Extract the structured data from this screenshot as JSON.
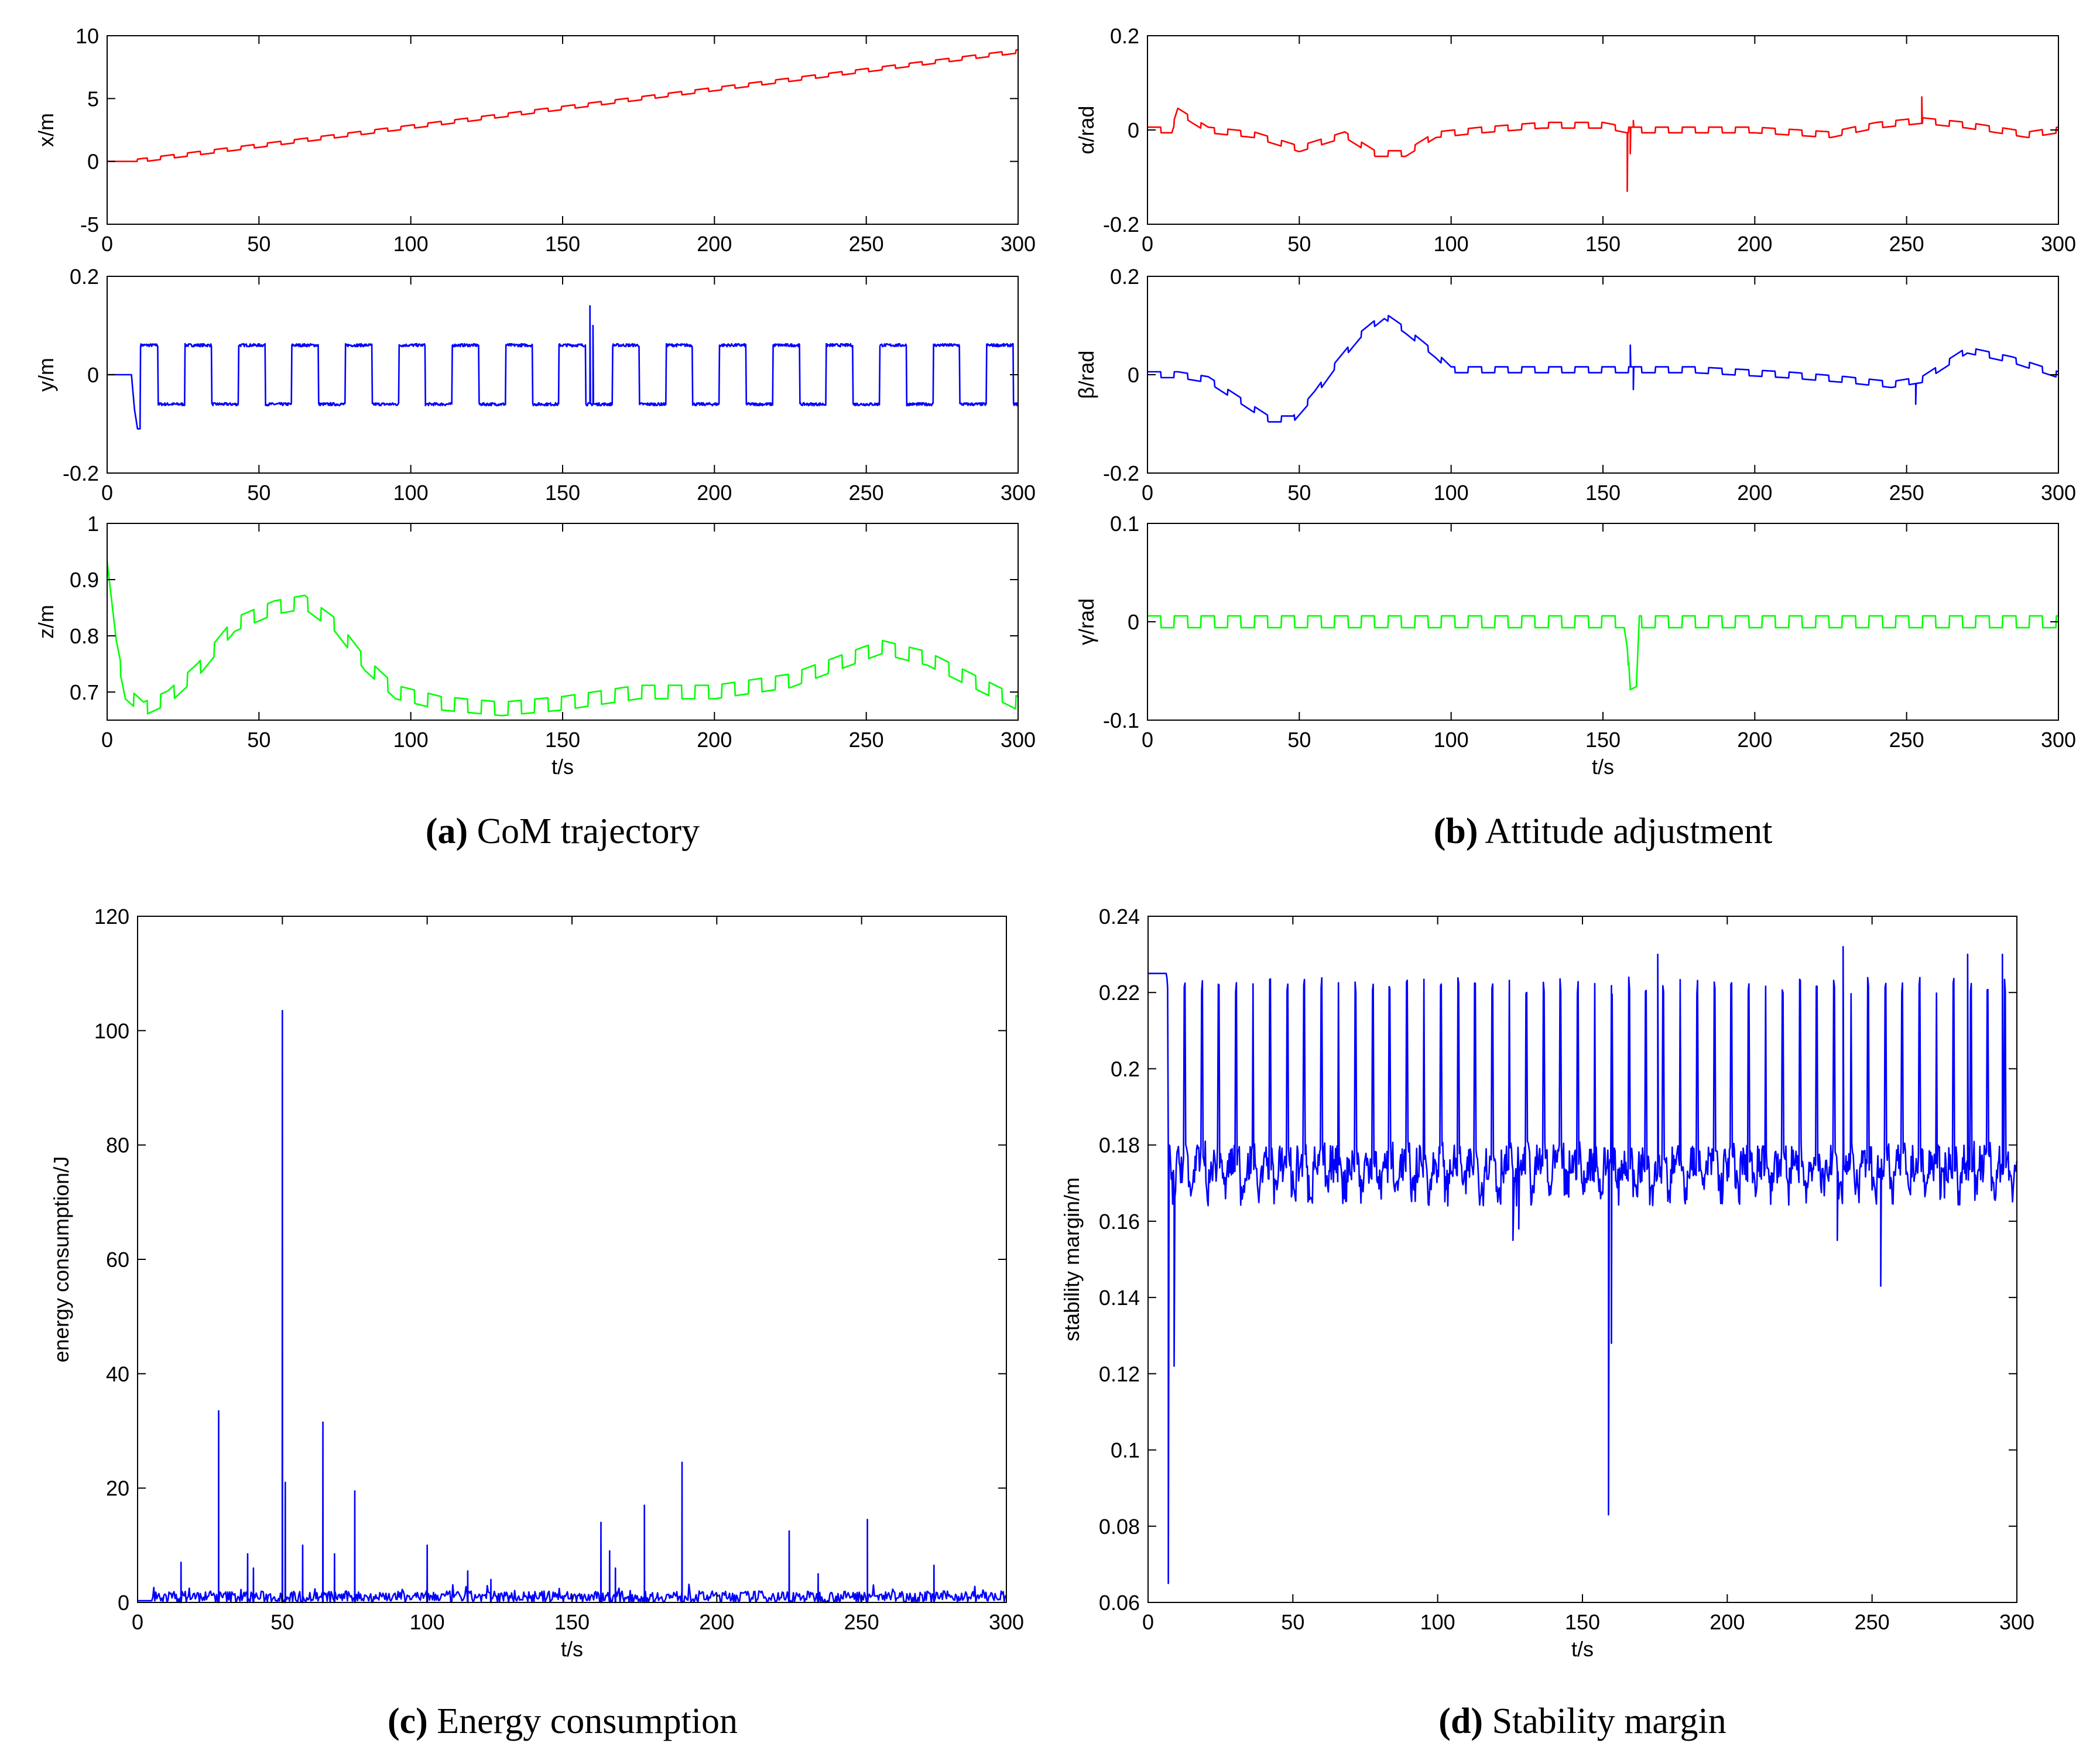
{
  "colors": {
    "red": "#ff0000",
    "blue": "#0000ff",
    "green": "#00ff00"
  },
  "captions": [
    {
      "id": "a",
      "letter": "(a)",
      "text": " CoM trajectory"
    },
    {
      "id": "b",
      "letter": "(b)",
      "text": " Attitude adjustment"
    },
    {
      "id": "c",
      "letter": "(c)",
      "text": " Energy consumption"
    },
    {
      "id": "d",
      "letter": "(d)",
      "text": " Stability margin"
    }
  ],
  "chart_data": [
    {
      "id": "a-x",
      "panel": "a",
      "type": "line",
      "color": "red",
      "xlabel": "",
      "ylabel": "x/m",
      "xlim": [
        0,
        300
      ],
      "ylim": [
        -5,
        10
      ],
      "xticks": [
        0,
        50,
        100,
        150,
        200,
        250,
        300
      ],
      "xtick_labels": [
        "0",
        "50",
        "100",
        "150",
        "200",
        "250",
        "300"
      ],
      "yticks": [
        -5,
        0,
        5,
        10
      ],
      "ytick_labels": [
        "-5",
        "0",
        "5",
        "10"
      ],
      "series": [
        {
          "kind": "ramp_steps",
          "start": [
            0,
            0
          ],
          "end": [
            300,
            8.7
          ],
          "period": 8.8
        }
      ]
    },
    {
      "id": "a-y",
      "panel": "a",
      "type": "line",
      "color": "blue",
      "xlabel": "",
      "ylabel": "y/m",
      "xlim": [
        0,
        300
      ],
      "ylim": [
        -0.2,
        0.2
      ],
      "xticks": [
        0,
        50,
        100,
        150,
        200,
        250,
        300
      ],
      "xtick_labels": [
        "0",
        "50",
        "100",
        "150",
        "200",
        "250",
        "300"
      ],
      "yticks": [
        -0.2,
        0,
        0.2
      ],
      "ytick_labels": [
        "-0.2",
        "0",
        "0.2"
      ],
      "series": [
        {
          "kind": "square",
          "x0": 8,
          "period": 17.6,
          "high": 0.06,
          "low": -0.06,
          "x": [
            0,
            8,
            9,
            10
          ],
          "y": [
            0,
            0,
            -0.07,
            -0.11
          ],
          "spikes": [
            [
              159,
              0.14
            ],
            [
              160,
              0.1
            ]
          ]
        }
      ]
    },
    {
      "id": "a-z",
      "panel": "a",
      "type": "line",
      "color": "green",
      "xlabel": "t/s",
      "ylabel": "z/m",
      "xlim": [
        0,
        300
      ],
      "ylim": [
        0.65,
        1.0
      ],
      "xticks": [
        0,
        50,
        100,
        150,
        200,
        250,
        300
      ],
      "xtick_labels": [
        "0",
        "50",
        "100",
        "150",
        "200",
        "250",
        "300"
      ],
      "yticks": [
        0.7,
        0.8,
        0.9,
        1.0
      ],
      "ytick_labels": [
        "0.7",
        "0.8",
        "0.9",
        "1"
      ],
      "series": [
        {
          "kind": "envelope_steps",
          "period": 8.8,
          "x": [
            0,
            3,
            6,
            12,
            20,
            30,
            42,
            55,
            65,
            75,
            85,
            95,
            110,
            130,
            150,
            175,
            200,
            225,
            240,
            255,
            270,
            285,
            300
          ],
          "y": [
            0.92,
            0.78,
            0.7,
            0.67,
            0.69,
            0.74,
            0.82,
            0.85,
            0.86,
            0.82,
            0.75,
            0.7,
            0.68,
            0.67,
            0.68,
            0.7,
            0.7,
            0.72,
            0.75,
            0.78,
            0.76,
            0.72,
            0.68
          ]
        }
      ]
    },
    {
      "id": "b-alpha",
      "panel": "b",
      "type": "line",
      "color": "red",
      "xlabel": "",
      "ylabel": "α/rad",
      "xlim": [
        0,
        300
      ],
      "ylim": [
        -0.2,
        0.2
      ],
      "xticks": [
        0,
        50,
        100,
        150,
        200,
        250,
        300
      ],
      "xtick_labels": [
        "0",
        "50",
        "100",
        "150",
        "200",
        "250",
        "300"
      ],
      "yticks": [
        -0.2,
        0,
        0.2
      ],
      "ytick_labels": [
        "-0.2",
        "0",
        "0.2"
      ],
      "series": [
        {
          "kind": "envelope_steps",
          "period": 8.8,
          "x": [
            0,
            8,
            10,
            20,
            35,
            50,
            65,
            75,
            85,
            95,
            110,
            130,
            150,
            158,
            165,
            180,
            200,
            225,
            240,
            255,
            270,
            290,
            300
          ],
          "y": [
            0,
            0,
            0.04,
            0,
            -0.01,
            -0.04,
            -0.01,
            -0.05,
            -0.05,
            -0.01,
            0,
            0.01,
            0.01,
            0,
            0,
            0,
            0,
            -0.01,
            0.01,
            0.02,
            0.01,
            -0.01,
            0
          ],
          "spikes": [
            [
              158,
              -0.13
            ],
            [
              159,
              -0.05
            ],
            [
              160,
              0.02
            ],
            [
              255,
              0.07
            ]
          ]
        }
      ]
    },
    {
      "id": "b-beta",
      "panel": "b",
      "type": "line",
      "color": "blue",
      "xlabel": "",
      "ylabel": "β/rad",
      "xlim": [
        0,
        300
      ],
      "ylim": [
        -0.2,
        0.2
      ],
      "xticks": [
        0,
        50,
        100,
        150,
        200,
        250,
        300
      ],
      "xtick_labels": [
        "0",
        "50",
        "100",
        "150",
        "200",
        "250",
        "300"
      ],
      "yticks": [
        -0.2,
        0,
        0.2
      ],
      "ytick_labels": [
        "-0.2",
        "0",
        "0.2"
      ],
      "series": [
        {
          "kind": "envelope_steps",
          "period": 8.8,
          "x": [
            0,
            10,
            20,
            30,
            40,
            48,
            55,
            62,
            70,
            78,
            85,
            95,
            100,
            120,
            150,
            180,
            210,
            230,
            245,
            255,
            270,
            285,
            300
          ],
          "y": [
            0,
            0,
            -0.01,
            -0.05,
            -0.09,
            -0.09,
            -0.04,
            0.02,
            0.08,
            0.12,
            0.09,
            0.04,
            0.01,
            0.01,
            0.01,
            0.01,
            0,
            -0.01,
            -0.02,
            -0.01,
            0.05,
            0.03,
            0
          ],
          "spikes": [
            [
              159,
              0.06
            ],
            [
              160,
              -0.03
            ],
            [
              253,
              -0.06
            ]
          ]
        }
      ]
    },
    {
      "id": "b-gamma",
      "panel": "b",
      "type": "line",
      "color": "green",
      "xlabel": "t/s",
      "ylabel": "γ/rad",
      "xlim": [
        0,
        300
      ],
      "ylim": [
        -0.1,
        0.1
      ],
      "xticks": [
        0,
        50,
        100,
        150,
        200,
        250,
        300
      ],
      "xtick_labels": [
        "0",
        "50",
        "100",
        "150",
        "200",
        "250",
        "300"
      ],
      "yticks": [
        -0.1,
        0,
        0.1
      ],
      "ytick_labels": [
        "-0.1",
        "0",
        "0.1"
      ],
      "series": [
        {
          "kind": "envelope_steps",
          "period": 8.8,
          "x": [
            0,
            50,
            100,
            150,
            157,
            158,
            159,
            161,
            162,
            170,
            200,
            250,
            300
          ],
          "y": [
            0,
            0,
            0,
            0,
            0,
            -0.02,
            -0.075,
            -0.072,
            0,
            0,
            0,
            0,
            0
          ]
        }
      ]
    },
    {
      "id": "c",
      "panel": "c",
      "type": "line",
      "color": "blue",
      "xlabel": "t/s",
      "ylabel": "energy consumption/J",
      "xlim": [
        0,
        300
      ],
      "ylim": [
        0,
        120
      ],
      "xticks": [
        0,
        50,
        100,
        150,
        200,
        250,
        300
      ],
      "xtick_labels": [
        "0",
        "50",
        "100",
        "150",
        "200",
        "250",
        "300"
      ],
      "yticks": [
        0,
        20,
        40,
        60,
        80,
        100,
        120
      ],
      "ytick_labels": [
        "0",
        "20",
        "40",
        "60",
        "80",
        "100",
        "120"
      ],
      "series": [
        {
          "kind": "spikes",
          "x": [
            15,
            28,
            38,
            40,
            50,
            51,
            57,
            64,
            68,
            75,
            100,
            114,
            122,
            160,
            163,
            165,
            175,
            188,
            225,
            235,
            252,
            275
          ],
          "y": [
            7,
            33.5,
            8.5,
            6,
            103.5,
            21,
            10,
            31.5,
            8.5,
            19.5,
            10,
            5.5,
            4,
            14,
            9,
            6,
            17,
            24.5,
            12.5,
            5,
            14.5,
            6.5
          ],
          "baseline": 2
        }
      ]
    },
    {
      "id": "d",
      "panel": "d",
      "type": "line",
      "color": "blue",
      "xlabel": "t/s",
      "ylabel": "stability margin/m",
      "xlim": [
        0,
        300
      ],
      "ylim": [
        0.06,
        0.24
      ],
      "xticks": [
        0,
        50,
        100,
        150,
        200,
        250,
        300
      ],
      "xtick_labels": [
        "0",
        "50",
        "100",
        "150",
        "200",
        "250",
        "300"
      ],
      "yticks": [
        0.06,
        0.08,
        0.1,
        0.12,
        0.14,
        0.16,
        0.18,
        0.2,
        0.22,
        0.24
      ],
      "ytick_labels": [
        "0.06",
        "0.08",
        "0.1",
        "0.12",
        "0.14",
        "0.16",
        "0.18",
        "0.2",
        "0.22",
        "0.24"
      ],
      "series": [
        {
          "kind": "margin",
          "start": 0.225,
          "peak": 0.224,
          "base": 0.168,
          "period": 5.9,
          "dips": [
            [
              7,
              0.065
            ],
            [
              9,
              0.122
            ],
            [
              159,
              0.083
            ],
            [
              160,
              0.128
            ],
            [
              126,
              0.155
            ],
            [
              253,
              0.143
            ],
            [
              128,
              0.158
            ],
            [
              238,
              0.155
            ]
          ],
          "peaks": [
            [
              176,
              0.23
            ],
            [
              240,
              0.232
            ],
            [
              283,
              0.23
            ],
            [
              295,
              0.23
            ]
          ]
        }
      ]
    }
  ]
}
